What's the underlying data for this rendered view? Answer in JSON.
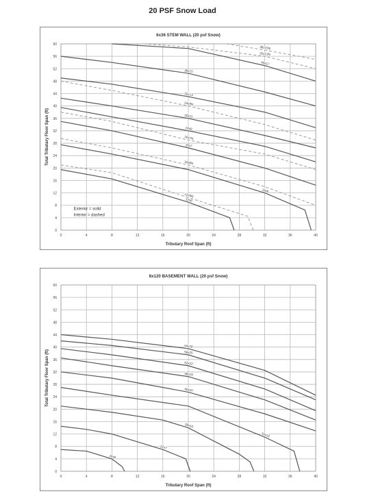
{
  "page": {
    "title": "20 PSF Snow Load"
  },
  "chart_data": [
    {
      "type": "line",
      "title": "6x36 STEM WALL (20 psf Snow)",
      "xlabel": "Tributary Roof Span (ft)",
      "ylabel": "Total Tributary Floor Span (ft)",
      "xlim": [
        0,
        40
      ],
      "ylim": [
        0,
        60
      ],
      "xticks": [
        0,
        4,
        8,
        12,
        16,
        20,
        24,
        28,
        32,
        36,
        40
      ],
      "yticks": [
        0,
        4,
        8,
        12,
        16,
        20,
        24,
        28,
        32,
        36,
        40,
        44,
        48,
        52,
        56,
        60
      ],
      "grid": true,
      "annotation": [
        "Exterior = solid",
        "Interior = dashed"
      ],
      "series": [
        {
          "name": "12x6",
          "style": "solid",
          "x": [
            0,
            8,
            20,
            26.5,
            27.2
          ],
          "y": [
            19.5,
            16.5,
            9,
            4,
            0
          ]
        },
        {
          "name": "12x6N",
          "style": "dashed",
          "x": [
            0,
            8,
            20,
            29.3,
            30.2
          ],
          "y": [
            21,
            18.5,
            10.5,
            4.5,
            0
          ]
        },
        {
          "name": "16x6",
          "style": "solid",
          "x": [
            0,
            8,
            20,
            32,
            38.3,
            39.3
          ],
          "y": [
            27.5,
            24.5,
            19.5,
            12,
            6.5,
            0
          ]
        },
        {
          "name": "16x6N",
          "style": "dashed",
          "x": [
            0,
            8,
            20,
            32,
            40
          ],
          "y": [
            29.5,
            26.5,
            21,
            14,
            8
          ]
        },
        {
          "name": "20x7",
          "style": "solid",
          "x": [
            0,
            8,
            20,
            32,
            40
          ],
          "y": [
            35,
            32,
            26.5,
            20,
            14.5
          ]
        },
        {
          "name": "20x7N",
          "style": "dashed",
          "x": [
            0,
            8,
            20,
            32,
            40
          ],
          "y": [
            38,
            35,
            29,
            24.5,
            19.5
          ]
        },
        {
          "name": "24x9",
          "style": "solid",
          "x": [
            0,
            8,
            20,
            32,
            40
          ],
          "y": [
            39.5,
            36.5,
            32,
            27,
            22
          ]
        },
        {
          "name": "24x9N",
          "style": "dashed",
          "x": [
            0,
            8,
            20,
            32,
            40
          ],
          "y": [
            48,
            45,
            40,
            34,
            29
          ]
        },
        {
          "name": "28x11",
          "style": "solid",
          "x": [
            0,
            8,
            20,
            32,
            40
          ],
          "y": [
            42.5,
            40,
            36,
            30.5,
            26.5
          ]
        },
        {
          "name": "32x13",
          "style": "solid",
          "x": [
            0,
            8,
            20,
            32,
            40
          ],
          "y": [
            49,
            47,
            43,
            38,
            33
          ]
        },
        {
          "name": "36x15",
          "style": "solid",
          "x": [
            0,
            8,
            20,
            32,
            40
          ],
          "y": [
            56,
            54,
            50.5,
            44.5,
            40
          ]
        },
        {
          "name": "32x13N",
          "style": "dashed",
          "x": [
            13,
            20,
            32,
            40
          ],
          "y": [
            60,
            59,
            56,
            52
          ]
        },
        {
          "name": "40x17",
          "style": "solid",
          "x": [
            8,
            20,
            32,
            40
          ],
          "y": [
            60,
            58.5,
            53,
            48
          ]
        },
        {
          "name": "36x15N",
          "style": "dashed",
          "x": [
            26,
            32,
            40
          ],
          "y": [
            60,
            58,
            55
          ]
        }
      ]
    },
    {
      "type": "line",
      "title": "8x120 BASEMENT WALL (20 psf Snow)",
      "xlabel": "Tributary Roof Span (ft)",
      "ylabel": "Total Tributary Floor Span (ft)",
      "xlim": [
        0,
        40
      ],
      "ylim": [
        0,
        60
      ],
      "xticks": [
        0,
        4,
        8,
        12,
        16,
        20,
        24,
        28,
        32,
        36,
        40
      ],
      "yticks": [
        0,
        4,
        8,
        12,
        16,
        20,
        24,
        28,
        32,
        36,
        40,
        44,
        48,
        52,
        56,
        60
      ],
      "grid": true,
      "series": [
        {
          "name": "16x6",
          "x": [
            0,
            4,
            8,
            9.6,
            10
          ],
          "y": [
            7,
            6.5,
            4,
            1.5,
            0
          ]
        },
        {
          "name": "22x7",
          "x": [
            0,
            4,
            8,
            16,
            19.6,
            20.3
          ],
          "y": [
            14.5,
            13.5,
            12,
            7,
            4,
            0
          ]
        },
        {
          "name": "28x10",
          "x": [
            0,
            4,
            8,
            16,
            20,
            28,
            29.7,
            30.3
          ],
          "y": [
            21,
            20,
            19,
            16.5,
            14,
            5.5,
            3,
            0
          ]
        },
        {
          "name": "34x13",
          "x": [
            0,
            8,
            20,
            32,
            36.6,
            37.5
          ],
          "y": [
            27,
            24.5,
            21,
            11,
            6.5,
            0
          ]
        },
        {
          "name": "40x16",
          "x": [
            0,
            8,
            20,
            32,
            40
          ],
          "y": [
            32,
            30,
            25.5,
            18.5,
            13
          ]
        },
        {
          "name": "46x19",
          "x": [
            0,
            8,
            20,
            32,
            40
          ],
          "y": [
            36.5,
            34,
            30.5,
            23,
            16.5
          ]
        },
        {
          "name": "52x22",
          "x": [
            0,
            8,
            20,
            32,
            40
          ],
          "y": [
            39.5,
            37.5,
            34,
            26.5,
            19.5
          ]
        },
        {
          "name": "58x25",
          "x": [
            0,
            8,
            20,
            32,
            40
          ],
          "y": [
            42,
            40.5,
            37.5,
            30,
            23
          ]
        },
        {
          "name": "64x28",
          "x": [
            0,
            8,
            20,
            32,
            40
          ],
          "y": [
            44,
            42.5,
            39.5,
            32.5,
            24.5
          ]
        }
      ]
    }
  ]
}
